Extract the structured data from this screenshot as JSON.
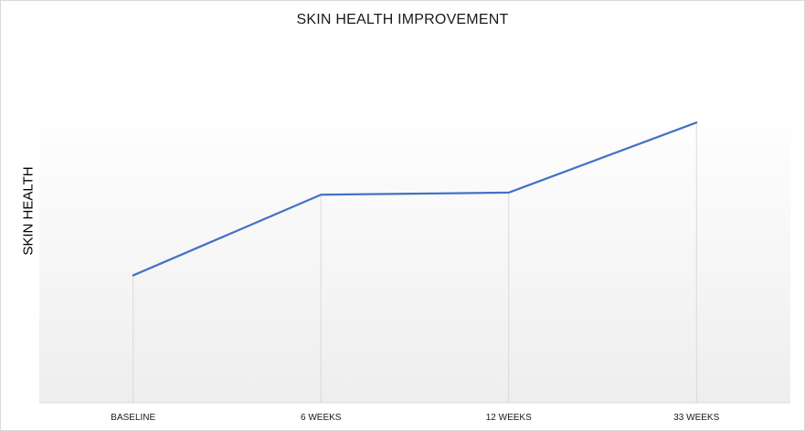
{
  "chart_data": {
    "type": "line",
    "title": "SKIN HEALTH IMPROVEMENT",
    "xlabel": "",
    "ylabel": "SKIN HEALTH",
    "categories": [
      "BASELINE",
      "6 WEEKS",
      "12 WEEKS",
      "33 WEEKS"
    ],
    "series": [
      {
        "values": [
          30,
          49,
          49.5,
          66
        ]
      }
    ],
    "ylim": [
      0,
      71
    ],
    "grid": false,
    "drop_lines": true,
    "line_color": "#4472C4",
    "plot_gradient": [
      "#ffffff",
      "#eeeeee"
    ]
  }
}
